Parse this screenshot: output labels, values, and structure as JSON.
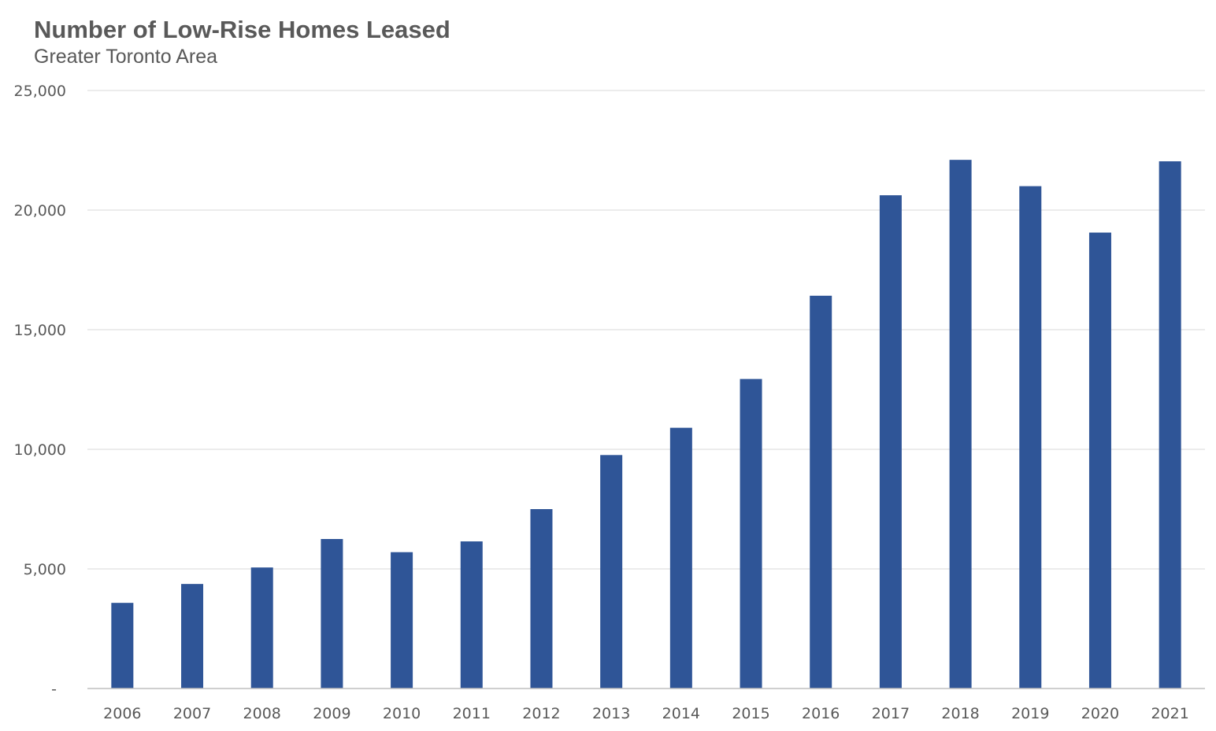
{
  "chart_data": {
    "type": "bar",
    "title": "Number of Low-Rise Homes Leased",
    "subtitle": "Greater Toronto Area",
    "xlabel": "",
    "ylabel": "",
    "categories": [
      "2006",
      "2007",
      "2008",
      "2009",
      "2010",
      "2011",
      "2012",
      "2013",
      "2014",
      "2015",
      "2016",
      "2017",
      "2018",
      "2019",
      "2020",
      "2021"
    ],
    "values": [
      3580,
      4370,
      5060,
      6250,
      5700,
      6150,
      7500,
      9760,
      10900,
      12940,
      16420,
      20620,
      22100,
      21000,
      19060,
      22040
    ],
    "ylim": [
      0,
      25000
    ],
    "yticks": [
      0,
      5000,
      10000,
      15000,
      20000,
      25000
    ],
    "ytick_labels": [
      "-",
      "5,000",
      "10,000",
      "15,000",
      "20,000",
      "25,000"
    ],
    "grid": true,
    "legend": "none",
    "bar_color": "#2f5597",
    "grid_color": "#d9d9d9",
    "axis_color": "#bfbfbf",
    "text_color": "#595959"
  }
}
